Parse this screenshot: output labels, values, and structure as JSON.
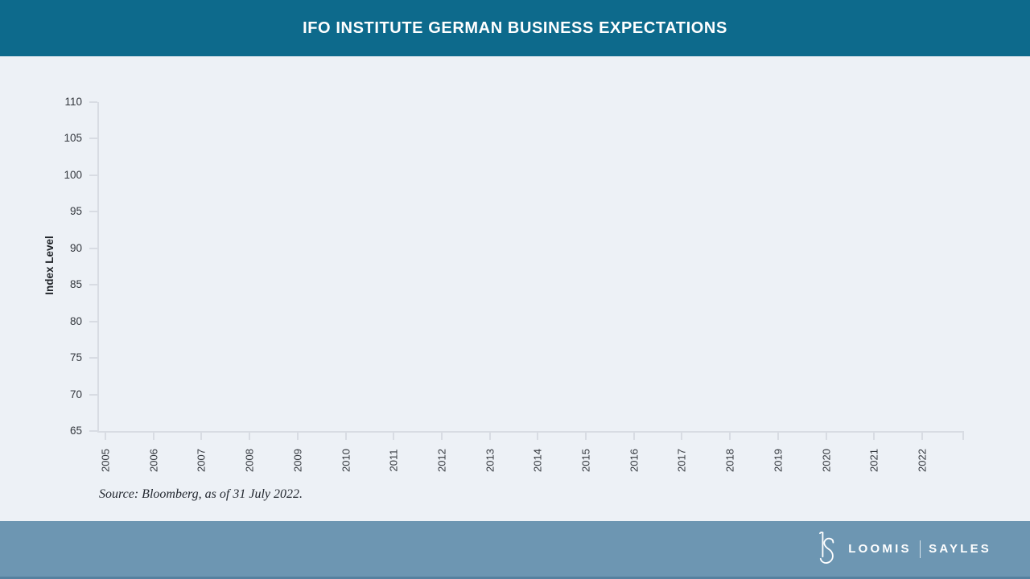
{
  "header": {
    "title": "IFO INSTITUTE GERMAN BUSINESS EXPECTATIONS"
  },
  "chart_data": {
    "type": "line",
    "title": "IFO INSTITUTE GERMAN BUSINESS EXPECTATIONS",
    "xlabel": "",
    "ylabel": "Index Level",
    "categories": [
      "2005",
      "2006",
      "2007",
      "2008",
      "2009",
      "2010",
      "2011",
      "2012",
      "2013",
      "2014",
      "2015",
      "2016",
      "2017",
      "2018",
      "2019",
      "2020",
      "2021",
      "2022"
    ],
    "y_ticks": [
      65,
      70,
      75,
      80,
      85,
      90,
      95,
      100,
      105,
      110
    ],
    "ylim": [
      65,
      110
    ],
    "series": [],
    "grid": false,
    "legend": "none"
  },
  "source": {
    "text": "Source: Bloomberg, as of 31 July 2022."
  },
  "footer": {
    "monogram_icon": "ls-monogram",
    "brand_left": "LOOMIS",
    "brand_right": "SAYLES"
  },
  "colors": {
    "header_bg": "#0d6a8c",
    "footer_bg": "#6d96b2",
    "footer_edge": "#56819f",
    "page_bg": "#edf1f6",
    "axis": "#d8dce3",
    "tick_label": "#33373d",
    "title_text": "#ffffff",
    "source_text": "#232830",
    "brand_text": "#ffffff"
  }
}
